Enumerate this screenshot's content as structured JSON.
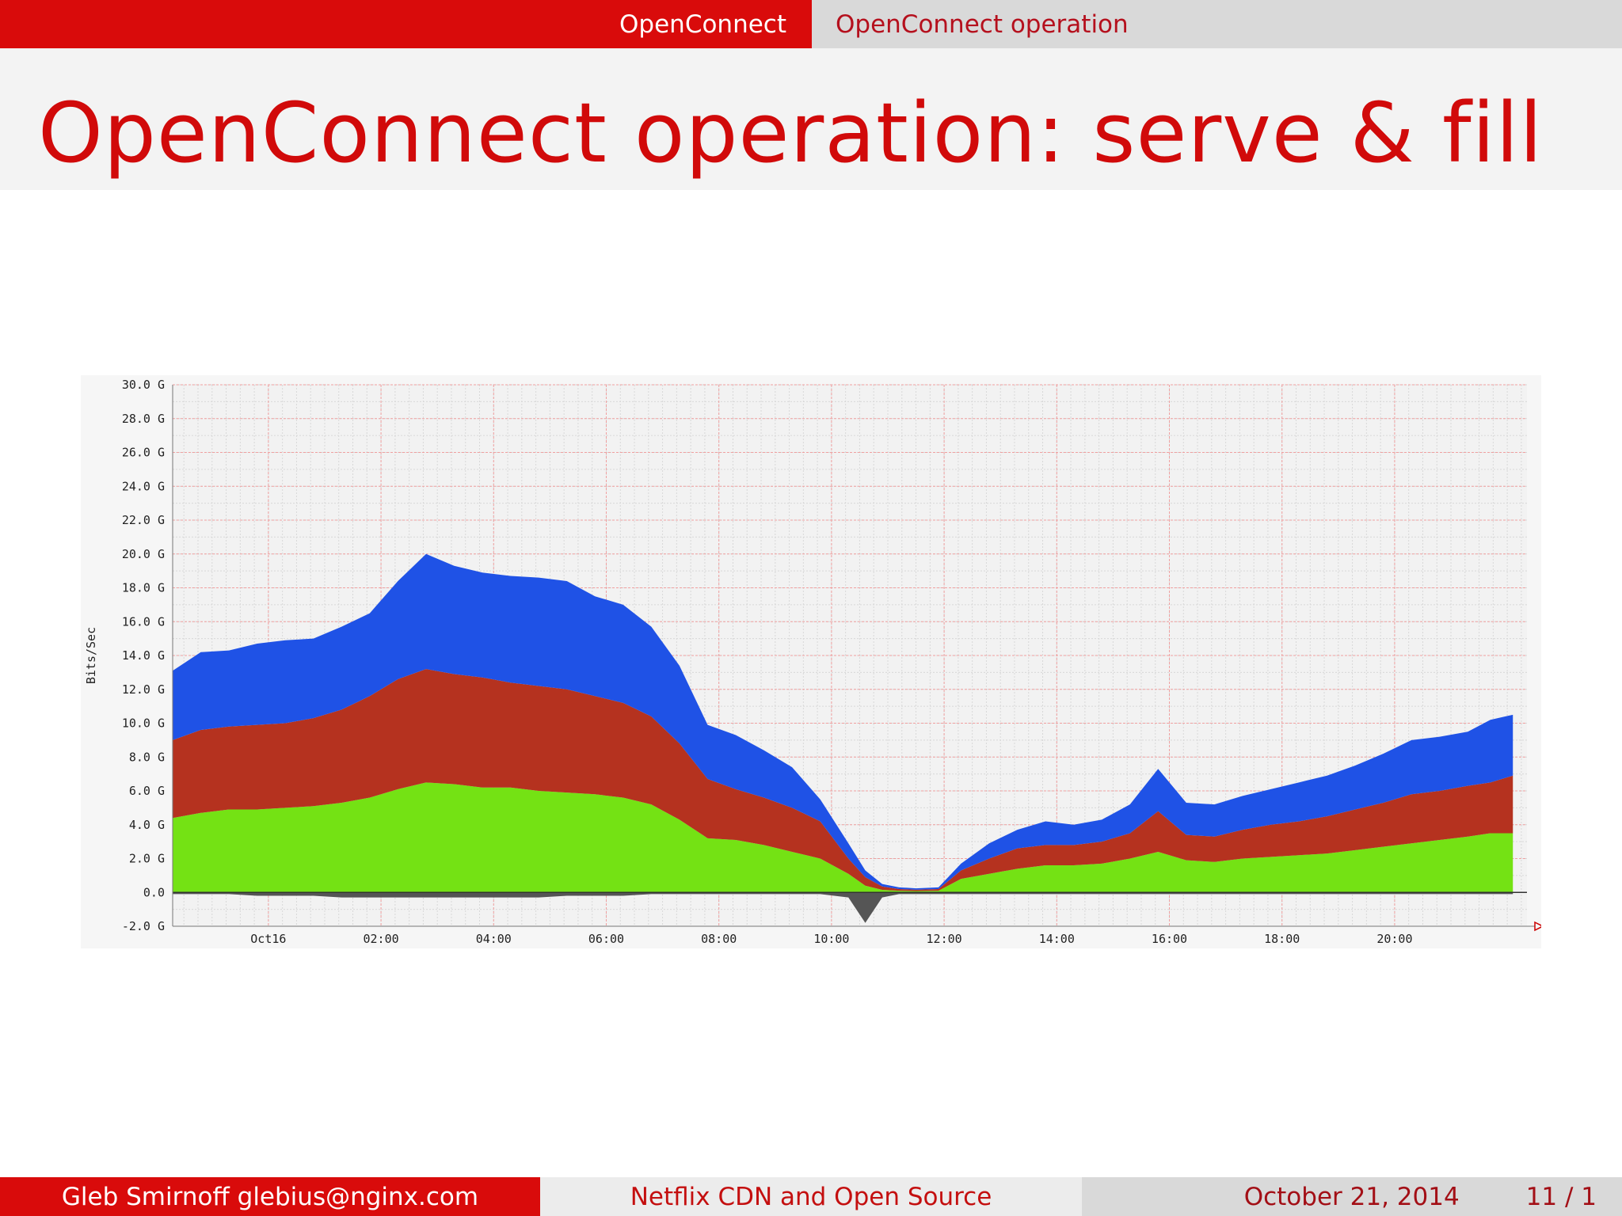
{
  "header": {
    "section": "OpenConnect",
    "subsection": "OpenConnect operation"
  },
  "slide": {
    "title": "OpenConnect operation: serve & fill"
  },
  "footer": {
    "author": "Gleb Smirnoff glebius@nginx.com",
    "talk_title": "Netflix CDN and Open Source",
    "date": "October 21, 2014",
    "page": "11 / 1"
  },
  "colors": {
    "accent": "#d90b0b",
    "series_blue": "#1f52e6",
    "series_red": "#b5321f",
    "series_green": "#74e214",
    "series_gray": "#555555"
  },
  "chart_data": {
    "type": "area",
    "ylabel": "Bits/Sec",
    "y_ticks": [
      "30.0 G",
      "28.0 G",
      "26.0 G",
      "24.0 G",
      "22.0 G",
      "20.0 G",
      "18.0 G",
      "16.0 G",
      "14.0 G",
      "12.0 G",
      "10.0 G",
      "8.0 G",
      "6.0 G",
      "4.0 G",
      "2.0 G",
      "0.0",
      "-2.0 G"
    ],
    "ylim": [
      -2,
      30
    ],
    "x_ticks": [
      "Oct16",
      "02:00",
      "04:00",
      "06:00",
      "08:00",
      "10:00",
      "12:00",
      "14:00",
      "16:00",
      "18:00",
      "20:00"
    ],
    "x_tick_hours": [
      0,
      2,
      4,
      6,
      8,
      10,
      12,
      14,
      16,
      18,
      20
    ],
    "xlim_hours": [
      -1.7,
      22.35
    ],
    "grid": true,
    "stacked": true,
    "x_hours": [
      -1.7,
      -1.2,
      -0.7,
      -0.2,
      0.3,
      0.8,
      1.3,
      1.8,
      2.3,
      2.8,
      3.3,
      3.8,
      4.3,
      4.8,
      5.3,
      5.8,
      6.3,
      6.8,
      7.3,
      7.8,
      8.3,
      8.8,
      9.3,
      9.8,
      10.3,
      10.6,
      10.9,
      11.2,
      11.5,
      11.9,
      12.3,
      12.8,
      13.3,
      13.8,
      14.3,
      14.8,
      15.3,
      15.8,
      16.3,
      16.8,
      17.3,
      17.8,
      18.3,
      18.8,
      19.3,
      19.8,
      20.3,
      20.8,
      21.3,
      21.7,
      22.1
    ],
    "series": [
      {
        "values": [
          4.4,
          4.7,
          4.9,
          4.9,
          5.0,
          5.1,
          5.3,
          5.6,
          6.1,
          6.5,
          6.4,
          6.2,
          6.2,
          6.0,
          5.9,
          5.8,
          5.6,
          5.2,
          4.3,
          3.2,
          3.1,
          2.8,
          2.4,
          2.0,
          1.1,
          0.4,
          0.15,
          0.1,
          0.08,
          0.1,
          0.8,
          1.1,
          1.4,
          1.6,
          1.6,
          1.7,
          2.0,
          2.4,
          1.9,
          1.8,
          2.0,
          2.1,
          2.2,
          2.3,
          2.5,
          2.7,
          2.9,
          3.1,
          3.3,
          3.5,
          3.5
        ]
      },
      {
        "values": [
          4.6,
          4.9,
          4.9,
          5.0,
          5.0,
          5.2,
          5.5,
          6.0,
          6.5,
          6.7,
          6.5,
          6.5,
          6.2,
          6.2,
          6.1,
          5.8,
          5.6,
          5.2,
          4.5,
          3.5,
          3.0,
          2.8,
          2.6,
          2.2,
          0.9,
          0.5,
          0.2,
          0.1,
          0.08,
          0.1,
          0.5,
          0.9,
          1.2,
          1.2,
          1.2,
          1.3,
          1.5,
          2.4,
          1.5,
          1.5,
          1.7,
          1.9,
          2.0,
          2.2,
          2.4,
          2.6,
          2.9,
          2.9,
          3.0,
          3.0,
          3.4
        ]
      },
      {
        "values": [
          4.1,
          4.6,
          4.5,
          4.8,
          4.9,
          4.7,
          4.9,
          4.9,
          5.8,
          6.8,
          6.4,
          6.2,
          6.3,
          6.4,
          6.4,
          5.9,
          5.8,
          5.3,
          4.6,
          3.2,
          3.2,
          2.8,
          2.4,
          1.3,
          0.9,
          0.4,
          0.15,
          0.1,
          0.08,
          0.1,
          0.4,
          0.9,
          1.1,
          1.4,
          1.2,
          1.3,
          1.7,
          2.5,
          1.9,
          1.9,
          2.0,
          2.1,
          2.3,
          2.4,
          2.6,
          2.9,
          3.2,
          3.2,
          3.2,
          3.7,
          3.6
        ]
      },
      {
        "values": [
          -0.1,
          -0.1,
          -0.1,
          -0.2,
          -0.2,
          -0.2,
          -0.3,
          -0.3,
          -0.3,
          -0.3,
          -0.3,
          -0.3,
          -0.3,
          -0.3,
          -0.2,
          -0.2,
          -0.2,
          -0.1,
          -0.1,
          -0.1,
          -0.1,
          -0.1,
          -0.1,
          -0.1,
          -0.3,
          -1.8,
          -0.3,
          -0.1,
          -0.1,
          -0.1,
          -0.1,
          -0.1,
          -0.1,
          -0.1,
          -0.1,
          -0.1,
          -0.1,
          -0.1,
          -0.1,
          -0.1,
          -0.1,
          -0.1,
          -0.1,
          -0.1,
          -0.1,
          -0.1,
          -0.1,
          -0.1,
          -0.1,
          -0.1,
          -0.1
        ]
      }
    ]
  }
}
